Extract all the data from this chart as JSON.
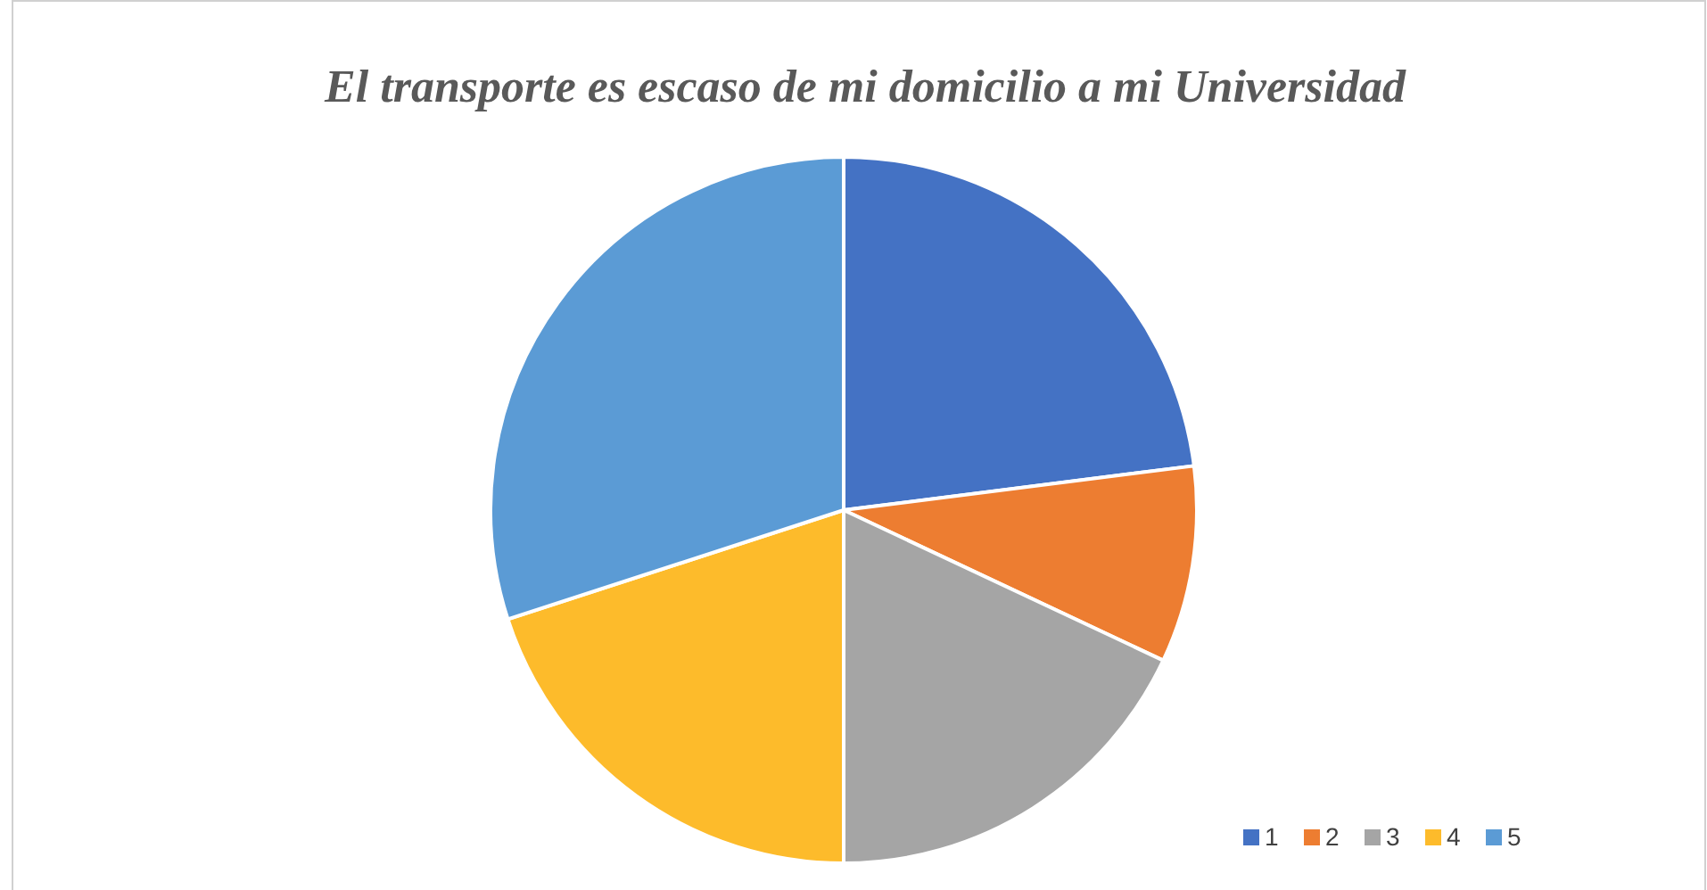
{
  "chart_data": {
    "type": "pie",
    "title": "El transporte es escaso de mi domicilio a mi Universidad",
    "categories": [
      "1",
      "2",
      "3",
      "4",
      "5"
    ],
    "values": [
      23,
      9,
      18,
      20,
      30
    ],
    "colors": [
      "#4472c4",
      "#ed7d31",
      "#a5a5a5",
      "#fdbb2b",
      "#5b9bd5"
    ],
    "legend": "bottom right"
  }
}
